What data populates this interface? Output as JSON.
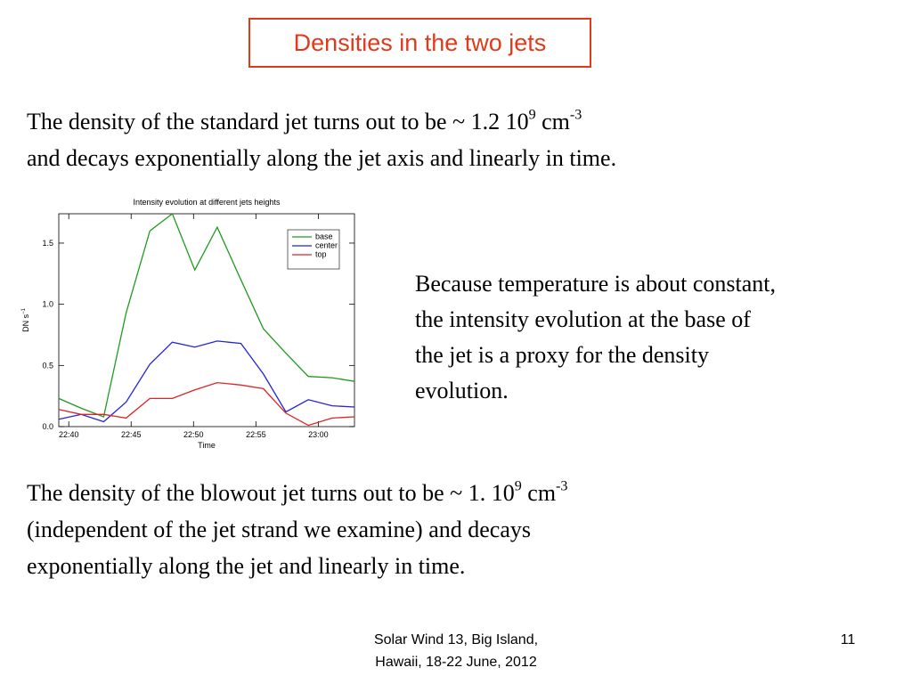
{
  "title": "Densities in the two jets",
  "para1": {
    "lines": [
      [
        {
          "text": "The density of the standard jet turns out to be ~ 1.2 10"
        },
        {
          "sup": "9"
        },
        {
          "text": " cm"
        },
        {
          "sup": "-3"
        }
      ],
      [
        {
          "text": "and decays exponentially along the jet axis and linearly in time."
        }
      ]
    ]
  },
  "para2": {
    "lines": [
      [
        {
          "text": "Because temperature is about constant,"
        }
      ],
      [
        {
          "text": "the intensity evolution at the base of"
        }
      ],
      [
        {
          "text": "the jet is a proxy for the density"
        }
      ],
      [
        {
          "text": "evolution."
        }
      ]
    ]
  },
  "para3": {
    "lines": [
      [
        {
          "text": "The density of the blowout jet turns out to be ~ 1. 10"
        },
        {
          "sup": "9"
        },
        {
          "text": " cm"
        },
        {
          "sup": "-3"
        }
      ],
      [
        {
          "text": "(independent of the jet strand we examine) and decays"
        }
      ],
      [
        {
          "text": "exponentially along the jet and linearly in time."
        }
      ]
    ]
  },
  "footer": {
    "lines": [
      "Solar Wind 13,  Big Island,",
      "Hawaii, 18-22 June, 2012"
    ],
    "page": "11"
  },
  "chart_data": {
    "type": "line",
    "title": "Intensity evolution at different jets heights",
    "xlabel": "Time",
    "ylabel": "DN s",
    "ylabel_sup": "−1",
    "x": [
      39.2,
      41.0,
      42.8,
      44.6,
      46.5,
      48.3,
      50.1,
      51.9,
      53.8,
      55.6,
      57.4,
      59.2,
      61.1,
      62.9
    ],
    "xlim": [
      39.2,
      62.9
    ],
    "xticks": [
      {
        "value": 40,
        "label": "22:40"
      },
      {
        "value": 45,
        "label": "22:45"
      },
      {
        "value": 50,
        "label": "22:50"
      },
      {
        "value": 55,
        "label": "22:55"
      },
      {
        "value": 60,
        "label": "23:00"
      }
    ],
    "ylim": [
      0,
      1.74
    ],
    "yticks": [
      {
        "value": 0,
        "label": "0.0"
      },
      {
        "value": 0.5,
        "label": "0.5"
      },
      {
        "value": 1,
        "label": "1.0"
      },
      {
        "value": 1.5,
        "label": "1.5"
      }
    ],
    "legend": "upper right",
    "series": [
      {
        "name": "base",
        "color": "#1f9a1f",
        "values": [
          0.23,
          0.15,
          0.08,
          0.93,
          1.6,
          1.74,
          1.28,
          1.63,
          1.2,
          0.8,
          0.6,
          0.41,
          0.4,
          0.37
        ]
      },
      {
        "name": "center",
        "color": "#2323dd",
        "values": [
          0.06,
          0.1,
          0.04,
          0.2,
          0.51,
          0.69,
          0.65,
          0.7,
          0.68,
          0.43,
          0.12,
          0.22,
          0.17,
          0.16
        ]
      },
      {
        "name": "top",
        "color": "#dd2323",
        "values": [
          0.14,
          0.1,
          0.1,
          0.07,
          0.23,
          0.23,
          0.3,
          0.36,
          0.34,
          0.31,
          0.11,
          0.01,
          0.07,
          0.08
        ]
      }
    ]
  }
}
